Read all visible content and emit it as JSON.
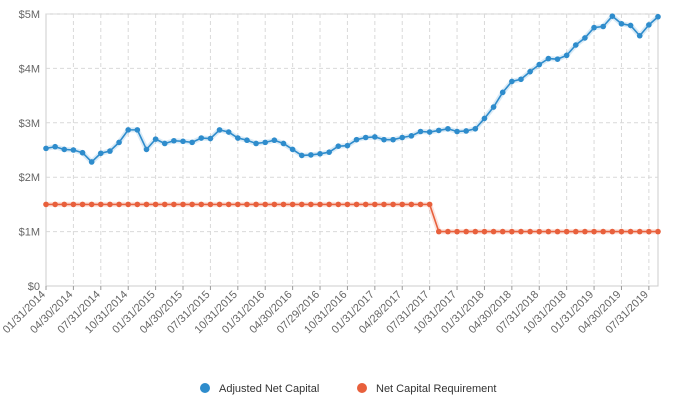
{
  "chart_data": {
    "type": "line",
    "title": "",
    "xlabel": "",
    "ylabel": "",
    "ylim": [
      0,
      5000000
    ],
    "y_ticks": [
      {
        "value": 0,
        "label": "$0"
      },
      {
        "value": 1000000,
        "label": "$1M"
      },
      {
        "value": 2000000,
        "label": "$2M"
      },
      {
        "value": 3000000,
        "label": "$3M"
      },
      {
        "value": 4000000,
        "label": "$4M"
      },
      {
        "value": 5000000,
        "label": "$5M"
      }
    ],
    "x_ticks": [
      {
        "index": 0,
        "label": "01/31/2014"
      },
      {
        "index": 3,
        "label": "04/30/2014"
      },
      {
        "index": 6,
        "label": "07/31/2014"
      },
      {
        "index": 9,
        "label": "10/31/2014"
      },
      {
        "index": 12,
        "label": "01/31/2015"
      },
      {
        "index": 15,
        "label": "04/30/2015"
      },
      {
        "index": 18,
        "label": "07/31/2015"
      },
      {
        "index": 21,
        "label": "10/31/2015"
      },
      {
        "index": 24,
        "label": "01/31/2016"
      },
      {
        "index": 27,
        "label": "04/30/2016"
      },
      {
        "index": 30,
        "label": "07/29/2016"
      },
      {
        "index": 33,
        "label": "10/31/2016"
      },
      {
        "index": 36,
        "label": "01/31/2017"
      },
      {
        "index": 39,
        "label": "04/28/2017"
      },
      {
        "index": 42,
        "label": "07/31/2017"
      },
      {
        "index": 45,
        "label": "10/31/2017"
      },
      {
        "index": 48,
        "label": "01/31/2018"
      },
      {
        "index": 51,
        "label": "04/30/2018"
      },
      {
        "index": 54,
        "label": "07/31/2018"
      },
      {
        "index": 57,
        "label": "10/31/2018"
      },
      {
        "index": 60,
        "label": "01/31/2019"
      },
      {
        "index": 63,
        "label": "04/30/2019"
      },
      {
        "index": 66,
        "label": "07/31/2019"
      }
    ],
    "grid": true,
    "legend_position": "bottom-center",
    "series": [
      {
        "name": "Adjusted Net Capital",
        "color": "#2e8ccc",
        "values": [
          2530000,
          2560000,
          2510000,
          2500000,
          2450000,
          2280000,
          2440000,
          2480000,
          2640000,
          2870000,
          2870000,
          2510000,
          2700000,
          2620000,
          2670000,
          2660000,
          2640000,
          2720000,
          2710000,
          2870000,
          2830000,
          2720000,
          2680000,
          2620000,
          2640000,
          2680000,
          2620000,
          2510000,
          2400000,
          2410000,
          2430000,
          2460000,
          2570000,
          2580000,
          2690000,
          2730000,
          2740000,
          2690000,
          2690000,
          2730000,
          2760000,
          2840000,
          2830000,
          2860000,
          2890000,
          2840000,
          2850000,
          2890000,
          3080000,
          3290000,
          3560000,
          3760000,
          3800000,
          3940000,
          4070000,
          4180000,
          4170000,
          4240000,
          4430000,
          4560000,
          4750000,
          4770000,
          4960000,
          4820000,
          4790000,
          4600000,
          4800000,
          4950000
        ]
      },
      {
        "name": "Net Capital Requirement",
        "color": "#e8603c",
        "values": [
          1500000,
          1500000,
          1500000,
          1500000,
          1500000,
          1500000,
          1500000,
          1500000,
          1500000,
          1500000,
          1500000,
          1500000,
          1500000,
          1500000,
          1500000,
          1500000,
          1500000,
          1500000,
          1500000,
          1500000,
          1500000,
          1500000,
          1500000,
          1500000,
          1500000,
          1500000,
          1500000,
          1500000,
          1500000,
          1500000,
          1500000,
          1500000,
          1500000,
          1500000,
          1500000,
          1500000,
          1500000,
          1500000,
          1500000,
          1500000,
          1500000,
          1500000,
          1500000,
          1000000,
          1000000,
          1000000,
          1000000,
          1000000,
          1000000,
          1000000,
          1000000,
          1000000,
          1000000,
          1000000,
          1000000,
          1000000,
          1000000,
          1000000,
          1000000,
          1000000,
          1000000,
          1000000,
          1000000,
          1000000,
          1000000,
          1000000,
          1000000,
          1000000
        ]
      }
    ]
  }
}
